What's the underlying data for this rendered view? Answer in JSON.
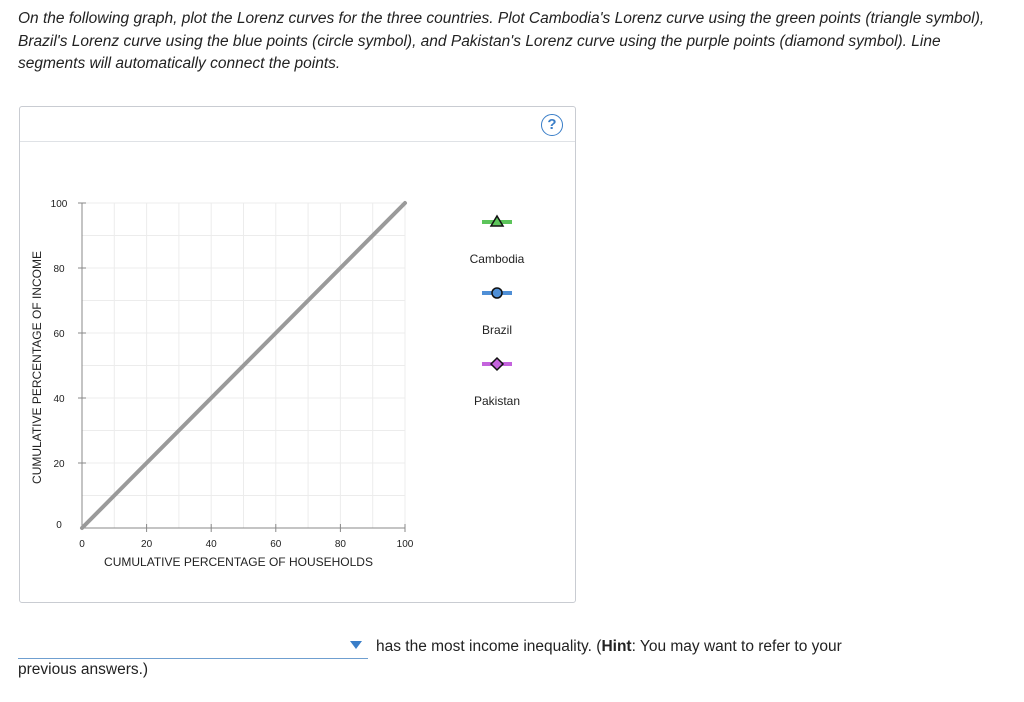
{
  "instructions": "On the following graph, plot the Lorenz curves for the three countries. Plot Cambodia's Lorenz curve using the green points (triangle symbol), Brazil's Lorenz curve using the blue points (circle symbol), and Pakistan's Lorenz curve using the purple points (diamond symbol). Line segments will automatically connect the points.",
  "help_label": "?",
  "chart_data": {
    "type": "line",
    "xlabel": "CUMULATIVE PERCENTAGE OF HOUSEHOLDS",
    "ylabel": "CUMULATIVE PERCENTAGE OF INCOME",
    "xlim": [
      0,
      100
    ],
    "ylim": [
      0,
      100
    ],
    "xticks": [
      0,
      20,
      40,
      60,
      80,
      100
    ],
    "yticks": [
      0,
      20,
      40,
      60,
      80,
      100
    ],
    "grid": true,
    "legend_position": "right",
    "series": [
      {
        "x": [
          0,
          100
        ],
        "y": [
          0,
          100
        ],
        "color": "#9a9a9a"
      }
    ],
    "tools": [
      {
        "name": "Cambodia",
        "marker": "triangle",
        "color": "#5cc45a"
      },
      {
        "name": "Brazil",
        "marker": "circle",
        "color": "#4f8fd6"
      },
      {
        "name": "Pakistan",
        "marker": "diamond",
        "color": "#c463dd"
      }
    ]
  },
  "question": {
    "select_value": "",
    "after_select": "has the most income inequality. (",
    "hint_label": "Hint",
    "hint_text": ": You may want to refer to your",
    "second_line": "previous answers.)"
  }
}
